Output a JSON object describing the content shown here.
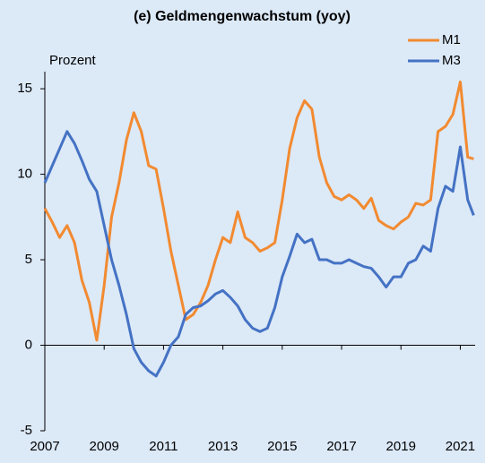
{
  "chart_data": {
    "type": "line",
    "title": "(e) Geldmengenwachstum (yoy)",
    "y_label": "Prozent",
    "x": [
      2007.0,
      2007.25,
      2007.5,
      2007.75,
      2008.0,
      2008.25,
      2008.5,
      2008.75,
      2009.0,
      2009.25,
      2009.5,
      2009.75,
      2010.0,
      2010.25,
      2010.5,
      2010.75,
      2011.0,
      2011.25,
      2011.5,
      2011.75,
      2012.0,
      2012.25,
      2012.5,
      2012.75,
      2013.0,
      2013.25,
      2013.5,
      2013.75,
      2014.0,
      2014.25,
      2014.5,
      2014.75,
      2015.0,
      2015.25,
      2015.5,
      2015.75,
      2016.0,
      2016.25,
      2016.5,
      2016.75,
      2017.0,
      2017.25,
      2017.5,
      2017.75,
      2018.0,
      2018.25,
      2018.5,
      2018.75,
      2019.0,
      2019.25,
      2019.5,
      2019.75,
      2020.0,
      2020.25,
      2020.5,
      2020.75,
      2021.0,
      2021.25,
      2021.45
    ],
    "series": [
      {
        "name": "M1",
        "color": "#f28a30",
        "values": [
          8.0,
          7.2,
          6.3,
          7.0,
          6.0,
          3.8,
          2.5,
          0.3,
          3.5,
          7.5,
          9.5,
          12.0,
          13.6,
          12.5,
          10.5,
          10.3,
          8.0,
          5.5,
          3.5,
          1.5,
          1.8,
          2.5,
          3.5,
          5.0,
          6.3,
          6.0,
          7.8,
          6.3,
          6.0,
          5.5,
          5.7,
          6.0,
          8.5,
          11.5,
          13.3,
          14.3,
          13.8,
          11.0,
          9.5,
          8.7,
          8.5,
          8.8,
          8.5,
          8.0,
          8.6,
          7.3,
          7.0,
          6.8,
          7.2,
          7.5,
          8.3,
          8.2,
          8.5,
          12.5,
          12.8,
          13.5,
          15.4,
          11.0,
          10.9
        ]
      },
      {
        "name": "M3",
        "color": "#4472c4",
        "values": [
          9.5,
          10.5,
          11.5,
          12.5,
          11.8,
          10.8,
          9.7,
          9.0,
          7.0,
          5.0,
          3.5,
          1.8,
          -0.2,
          -1.0,
          -1.5,
          -1.8,
          -1.0,
          0.0,
          0.5,
          1.8,
          2.2,
          2.3,
          2.6,
          3.0,
          3.2,
          2.8,
          2.3,
          1.5,
          1.0,
          0.8,
          1.0,
          2.2,
          4.0,
          5.2,
          6.5,
          6.0,
          6.2,
          5.0,
          5.0,
          4.8,
          4.8,
          5.0,
          4.8,
          4.6,
          4.5,
          4.0,
          3.4,
          4.0,
          4.0,
          4.8,
          5.0,
          5.8,
          5.5,
          8.0,
          9.3,
          9.0,
          11.6,
          8.5,
          7.6
        ]
      }
    ],
    "xlim": [
      2007,
      2021.5
    ],
    "xticks": [
      2007,
      2009,
      2011,
      2013,
      2015,
      2017,
      2019,
      2021
    ],
    "ylim": [
      -5,
      16
    ],
    "yticks": [
      -5,
      0,
      5,
      10,
      15
    ],
    "grid": false,
    "legend": "top-right"
  }
}
